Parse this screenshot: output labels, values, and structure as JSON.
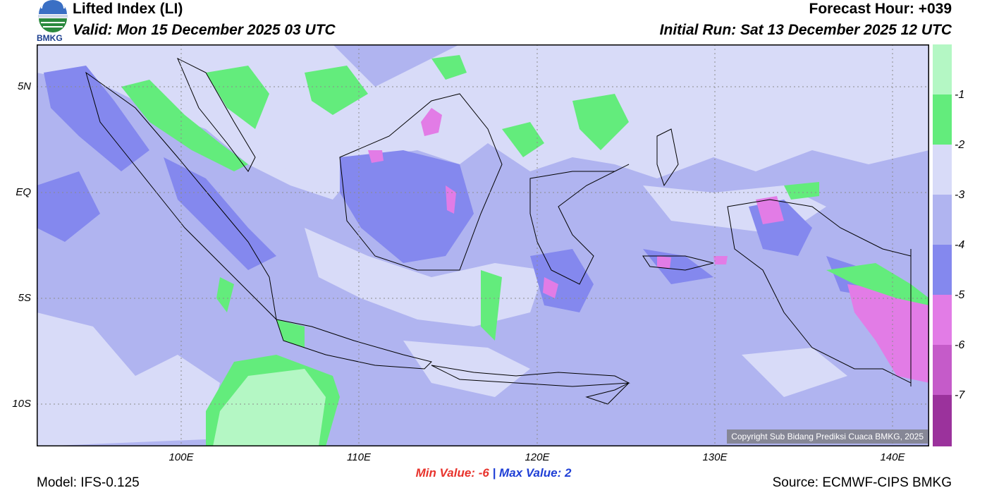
{
  "header": {
    "title": "Lifted Index (LI)",
    "valid": "Valid: Mon 15 December 2025 03 UTC",
    "forecast_hour": "Forecast Hour: +039",
    "initial_run": "Initial Run: Sat 13 December 2025 12 UTC",
    "logo_text": "BMKG"
  },
  "map": {
    "lat_ticks": [
      "5N",
      "EQ",
      "5S",
      "10S"
    ],
    "lon_ticks": [
      "100E",
      "110E",
      "120E",
      "130E",
      "140E"
    ],
    "copyright": "Copyright Sub Bidang Prediksi Cuaca BMKG, 2025",
    "lat_range": [
      -12,
      7
    ],
    "lon_range": [
      92,
      142.5
    ],
    "gridlines": "dotted"
  },
  "colorbar": {
    "ticks": [
      "-1",
      "-2",
      "-3",
      "-4",
      "-5",
      "-6",
      "-7"
    ],
    "colors": [
      "#b4f7c4",
      "#63ec7c",
      "#d8dbf8",
      "#b0b4f0",
      "#8488ee",
      "#e27ce6",
      "#c55bc9",
      "#9b329c"
    ]
  },
  "stats": {
    "min_label": "Min Value:",
    "min_value": "-6",
    "separator": "|",
    "max_label": "Max Value:",
    "max_value": "2"
  },
  "footer": {
    "model": "Model: IFS-0.125",
    "source": "Source: ECMWF-CIPS BMKG"
  }
}
